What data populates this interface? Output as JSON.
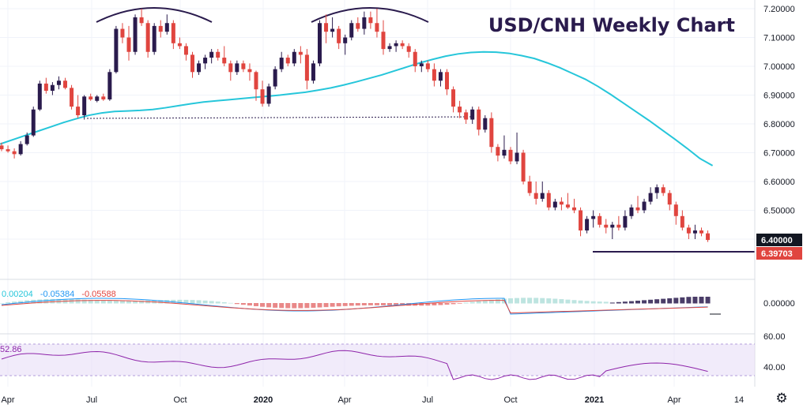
{
  "chart_data": [
    {
      "type": "candlestick",
      "title": "USD/CNH Weekly Chart",
      "y_ticks": [
        "7.20000",
        "7.10000",
        "7.00000",
        "6.90000",
        "6.80000",
        "6.70000",
        "6.60000",
        "6.50000",
        "6.40000"
      ],
      "x_ticks": [
        "Apr",
        "Jul",
        "Oct",
        "2020",
        "Apr",
        "Jul",
        "Oct",
        "2021",
        "Apr",
        "14"
      ],
      "ylim": [
        6.35,
        7.22
      ],
      "price_tags": [
        {
          "label": "6.40000",
          "color": "#131722"
        },
        {
          "label": "6.39703",
          "color": "#e0453f"
        }
      ],
      "colors": {
        "up": "#2a1b4d",
        "down": "#e0453f",
        "ma": "#26c6da",
        "annotation": "#2a1b4d",
        "support": "#2a1b4d"
      },
      "candles": [
        [
          6.725,
          6.735,
          6.705,
          6.712
        ],
        [
          6.712,
          6.725,
          6.7,
          6.705
        ],
        [
          6.705,
          6.715,
          6.68,
          6.695
        ],
        [
          6.695,
          6.74,
          6.69,
          6.73
        ],
        [
          6.73,
          6.77,
          6.725,
          6.76
        ],
        [
          6.76,
          6.86,
          6.755,
          6.85
        ],
        [
          6.85,
          6.95,
          6.845,
          6.94
        ],
        [
          6.94,
          6.96,
          6.905,
          6.915
        ],
        [
          6.915,
          6.945,
          6.9,
          6.935
        ],
        [
          6.935,
          6.965,
          6.92,
          6.95
        ],
        [
          6.95,
          6.96,
          6.92,
          6.925
        ],
        [
          6.925,
          6.935,
          6.85,
          6.86
        ],
        [
          6.86,
          6.9,
          6.82,
          6.83
        ],
        [
          6.83,
          6.9,
          6.815,
          6.895
        ],
        [
          6.895,
          6.905,
          6.88,
          6.885
        ],
        [
          6.88,
          6.9,
          6.875,
          6.895
        ],
        [
          6.895,
          6.905,
          6.88,
          6.885
        ],
        [
          6.885,
          6.99,
          6.88,
          6.98
        ],
        [
          6.98,
          7.14,
          6.975,
          7.13
        ],
        [
          7.13,
          7.15,
          7.08,
          7.1
        ],
        [
          7.1,
          7.14,
          7.02,
          7.05
        ],
        [
          7.05,
          7.18,
          7.04,
          7.17
        ],
        [
          7.17,
          7.2,
          7.14,
          7.15
        ],
        [
          7.15,
          7.16,
          7.03,
          7.05
        ],
        [
          7.05,
          7.15,
          7.04,
          7.14
        ],
        [
          7.14,
          7.16,
          7.1,
          7.12
        ],
        [
          7.12,
          7.18,
          7.11,
          7.15
        ],
        [
          7.15,
          7.16,
          7.06,
          7.08
        ],
        [
          7.08,
          7.1,
          7.06,
          7.07
        ],
        [
          7.07,
          7.08,
          7.02,
          7.04
        ],
        [
          7.04,
          7.05,
          6.96,
          6.98
        ],
        [
          6.98,
          7.02,
          6.97,
          7.01
        ],
        [
          7.01,
          7.04,
          6.99,
          7.03
        ],
        [
          7.03,
          7.06,
          7.01,
          7.05
        ],
        [
          7.05,
          7.06,
          7.02,
          7.03
        ],
        [
          7.03,
          7.07,
          7.0,
          7.01
        ],
        [
          7.01,
          7.02,
          6.95,
          6.98
        ],
        [
          6.98,
          7.02,
          6.97,
          7.01
        ],
        [
          7.01,
          7.02,
          6.98,
          6.99
        ],
        [
          6.99,
          7.01,
          6.95,
          6.98
        ],
        [
          6.98,
          6.985,
          6.88,
          6.92
        ],
        [
          6.92,
          6.95,
          6.86,
          6.87
        ],
        [
          6.87,
          6.94,
          6.86,
          6.93
        ],
        [
          6.93,
          7.0,
          6.92,
          6.99
        ],
        [
          6.99,
          7.05,
          6.98,
          7.03
        ],
        [
          7.03,
          7.04,
          7.0,
          7.01
        ],
        [
          7.01,
          7.06,
          7.0,
          7.05
        ],
        [
          7.05,
          7.07,
          7.01,
          7.04
        ],
        [
          7.04,
          7.06,
          6.92,
          6.95
        ],
        [
          6.95,
          7.02,
          6.94,
          7.01
        ],
        [
          7.01,
          7.16,
          7.0,
          7.15
        ],
        [
          7.15,
          7.18,
          7.08,
          7.12
        ],
        [
          7.12,
          7.17,
          7.1,
          7.13
        ],
        [
          7.13,
          7.14,
          7.06,
          7.08
        ],
        [
          7.08,
          7.11,
          7.04,
          7.1
        ],
        [
          7.1,
          7.16,
          7.09,
          7.15
        ],
        [
          7.15,
          7.17,
          7.12,
          7.13
        ],
        [
          7.13,
          7.19,
          7.11,
          7.17
        ],
        [
          7.17,
          7.19,
          7.13,
          7.15
        ],
        [
          7.15,
          7.2,
          7.1,
          7.12
        ],
        [
          7.12,
          7.16,
          7.04,
          7.06
        ],
        [
          7.06,
          7.08,
          7.05,
          7.07
        ],
        [
          7.07,
          7.09,
          7.05,
          7.08
        ],
        [
          7.08,
          7.09,
          7.06,
          7.07
        ],
        [
          7.07,
          7.08,
          7.03,
          7.05
        ],
        [
          7.05,
          7.06,
          6.98,
          7.0
        ],
        [
          7.0,
          7.02,
          6.98,
          7.01
        ],
        [
          7.01,
          7.02,
          6.98,
          6.99
        ],
        [
          6.99,
          7.01,
          6.93,
          6.95
        ],
        [
          6.95,
          6.99,
          6.93,
          6.98
        ],
        [
          6.98,
          6.99,
          6.9,
          6.92
        ],
        [
          6.92,
          6.93,
          6.84,
          6.86
        ],
        [
          6.86,
          6.88,
          6.82,
          6.84
        ],
        [
          6.84,
          6.85,
          6.8,
          6.815
        ],
        [
          6.815,
          6.86,
          6.8,
          6.85
        ],
        [
          6.85,
          6.86,
          6.76,
          6.78
        ],
        [
          6.78,
          6.83,
          6.77,
          6.82
        ],
        [
          6.82,
          6.84,
          6.7,
          6.72
        ],
        [
          6.72,
          6.73,
          6.67,
          6.69
        ],
        [
          6.69,
          6.76,
          6.68,
          6.71
        ],
        [
          6.71,
          6.72,
          6.66,
          6.67
        ],
        [
          6.67,
          6.77,
          6.66,
          6.7
        ],
        [
          6.7,
          6.71,
          6.59,
          6.6
        ],
        [
          6.6,
          6.62,
          6.55,
          6.56
        ],
        [
          6.56,
          6.6,
          6.52,
          6.54
        ],
        [
          6.54,
          6.6,
          6.53,
          6.56
        ],
        [
          6.56,
          6.57,
          6.5,
          6.51
        ],
        [
          6.51,
          6.54,
          6.5,
          6.53
        ],
        [
          6.53,
          6.545,
          6.5,
          6.52
        ],
        [
          6.52,
          6.56,
          6.505,
          6.51
        ],
        [
          6.51,
          6.54,
          6.49,
          6.5
        ],
        [
          6.5,
          6.51,
          6.41,
          6.43
        ],
        [
          6.43,
          6.48,
          6.42,
          6.47
        ],
        [
          6.47,
          6.5,
          6.44,
          6.48
        ],
        [
          6.48,
          6.49,
          6.44,
          6.45
        ],
        [
          6.45,
          6.47,
          6.42,
          6.44
        ],
        [
          6.44,
          6.46,
          6.4,
          6.45
        ],
        [
          6.45,
          6.48,
          6.43,
          6.44
        ],
        [
          6.44,
          6.5,
          6.43,
          6.48
        ],
        [
          6.48,
          6.52,
          6.47,
          6.51
        ],
        [
          6.51,
          6.55,
          6.49,
          6.5
        ],
        [
          6.5,
          6.54,
          6.49,
          6.53
        ],
        [
          6.53,
          6.58,
          6.52,
          6.56
        ],
        [
          6.56,
          6.59,
          6.54,
          6.58
        ],
        [
          6.58,
          6.59,
          6.55,
          6.56
        ],
        [
          6.56,
          6.57,
          6.5,
          6.52
        ],
        [
          6.52,
          6.53,
          6.45,
          6.48
        ],
        [
          6.48,
          6.5,
          6.43,
          6.44
        ],
        [
          6.44,
          6.45,
          6.4,
          6.42
        ],
        [
          6.42,
          6.45,
          6.4,
          6.43
        ],
        [
          6.43,
          6.44,
          6.41,
          6.42
        ],
        [
          6.42,
          6.43,
          6.39,
          6.397
        ]
      ],
      "moving_average": [
        [
          6.73,
          6.745,
          6.76,
          6.775,
          6.79,
          6.805,
          6.818,
          6.83,
          6.838,
          6.843,
          6.845,
          6.847,
          6.85,
          6.856,
          6.863,
          6.87,
          6.876,
          6.88,
          6.884,
          6.888,
          6.892,
          6.896,
          6.9,
          6.905,
          6.91,
          6.917,
          6.925,
          6.935,
          6.946,
          6.958,
          6.97,
          6.984,
          6.998,
          7.012,
          7.024,
          7.035,
          7.043,
          7.048,
          7.05,
          7.049,
          7.045,
          7.037,
          7.027,
          7.012,
          6.995,
          6.975,
          6.955,
          6.93,
          6.902,
          6.872,
          6.842,
          6.812,
          6.78,
          6.748,
          6.715,
          6.68,
          6.655
        ]
      ],
      "macd": {
        "histogram": "0.00204",
        "macd": "-0.05384",
        "signal": "-0.05588",
        "ticks": [
          "0.00000"
        ]
      },
      "rsi": {
        "value": "52.86",
        "ticks": [
          "60.00",
          "40.00"
        ]
      }
    }
  ],
  "ui": {
    "settings_icon": "gear-icon"
  }
}
